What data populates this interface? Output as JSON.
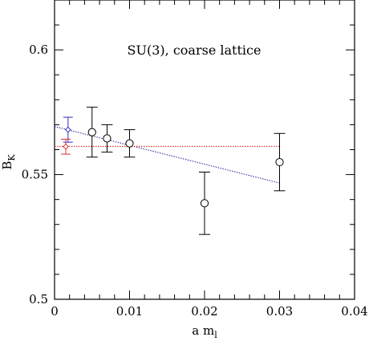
{
  "chart_data": {
    "type": "scatter",
    "title": "",
    "annotation": "SU(3), coarse lattice",
    "xlabel": {
      "main": "a m",
      "sub": "l"
    },
    "ylabel": {
      "main": "B",
      "sub": "K"
    },
    "xlim": [
      0,
      0.04
    ],
    "ylim": [
      0.5,
      0.62
    ],
    "x_ticks": [
      0,
      0.01,
      0.02,
      0.03,
      0.04
    ],
    "x_tick_labels": [
      "0",
      "0.01",
      "0.02",
      "0.03",
      "0.04"
    ],
    "y_ticks": [
      0.5,
      0.55,
      0.6
    ],
    "y_tick_labels": [
      "0.5",
      "0.55",
      "0.6"
    ],
    "grid": false,
    "series": [
      {
        "marker": "circle",
        "color": "#000000",
        "points": [
          {
            "x": 0.005,
            "y": 0.567,
            "err": 0.01
          },
          {
            "x": 0.007,
            "y": 0.5645,
            "err": 0.0055
          },
          {
            "x": 0.01,
            "y": 0.5625,
            "err": 0.0055
          },
          {
            "x": 0.02,
            "y": 0.5385,
            "err": 0.0125
          },
          {
            "x": 0.03,
            "y": 0.555,
            "err": 0.0115
          }
        ]
      },
      {
        "marker": "diamond",
        "color": "#3030c0",
        "points": [
          {
            "x": 0.0018,
            "y": 0.568,
            "err": 0.005
          }
        ]
      },
      {
        "marker": "diamond",
        "color": "#e03030",
        "points": [
          {
            "x": 0.0015,
            "y": 0.5612,
            "err": 0.003
          }
        ]
      }
    ],
    "fits": [
      {
        "style": "dotted",
        "color": "#3030a0",
        "x": [
          0,
          0.03
        ],
        "y": [
          0.5693,
          0.5466
        ]
      },
      {
        "style": "dotted",
        "color": "#e03030",
        "x": [
          0,
          0.03
        ],
        "y": [
          0.5613,
          0.5613
        ]
      }
    ]
  }
}
